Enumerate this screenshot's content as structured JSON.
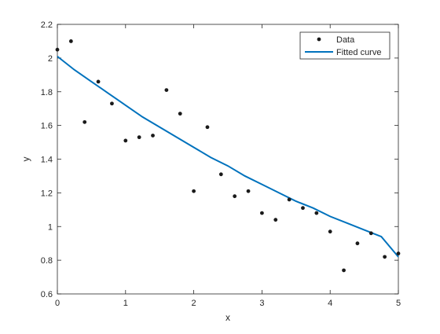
{
  "chart_data": {
    "type": "scatter",
    "title": "",
    "xlabel": "x",
    "ylabel": "y",
    "xlim": [
      0,
      5
    ],
    "ylim": [
      0.6,
      2.2
    ],
    "xticks": [
      "0",
      "1",
      "2",
      "3",
      "4",
      "5"
    ],
    "yticks": [
      "0.6",
      "0.8",
      "1",
      "1.2",
      "1.4",
      "1.6",
      "1.8",
      "2",
      "2.2"
    ],
    "grid": false,
    "legend_position": "top-right",
    "series": [
      {
        "name": "Data",
        "kind": "markers",
        "color": "#1a1a1a",
        "x": [
          0,
          0.2,
          0.4,
          0.6,
          0.8,
          1.0,
          1.2,
          1.4,
          1.6,
          1.8,
          2.0,
          2.2,
          2.4,
          2.6,
          2.8,
          3.0,
          3.2,
          3.4,
          3.6,
          3.8,
          4.0,
          4.2,
          4.4,
          4.6,
          4.8,
          5.0
        ],
        "y": [
          2.05,
          2.1,
          1.62,
          1.86,
          1.73,
          1.51,
          1.53,
          1.54,
          1.81,
          1.67,
          1.21,
          1.59,
          1.31,
          1.18,
          1.21,
          1.08,
          1.04,
          1.16,
          1.11,
          1.08,
          0.97,
          0.74,
          0.9,
          0.96,
          0.82,
          0.84
        ]
      },
      {
        "name": "Fitted curve",
        "kind": "line",
        "color": "#0072BD",
        "x": [
          0,
          0.25,
          0.5,
          0.75,
          1.0,
          1.25,
          1.5,
          1.75,
          2.0,
          2.25,
          2.5,
          2.75,
          3.0,
          3.25,
          3.5,
          3.75,
          4.0,
          4.25,
          4.5,
          4.75,
          5.0
        ],
        "y": [
          2.01,
          1.93,
          1.86,
          1.79,
          1.72,
          1.65,
          1.59,
          1.53,
          1.47,
          1.41,
          1.36,
          1.3,
          1.25,
          1.2,
          1.15,
          1.11,
          1.06,
          1.02,
          0.98,
          0.94,
          0.82
        ]
      }
    ]
  }
}
